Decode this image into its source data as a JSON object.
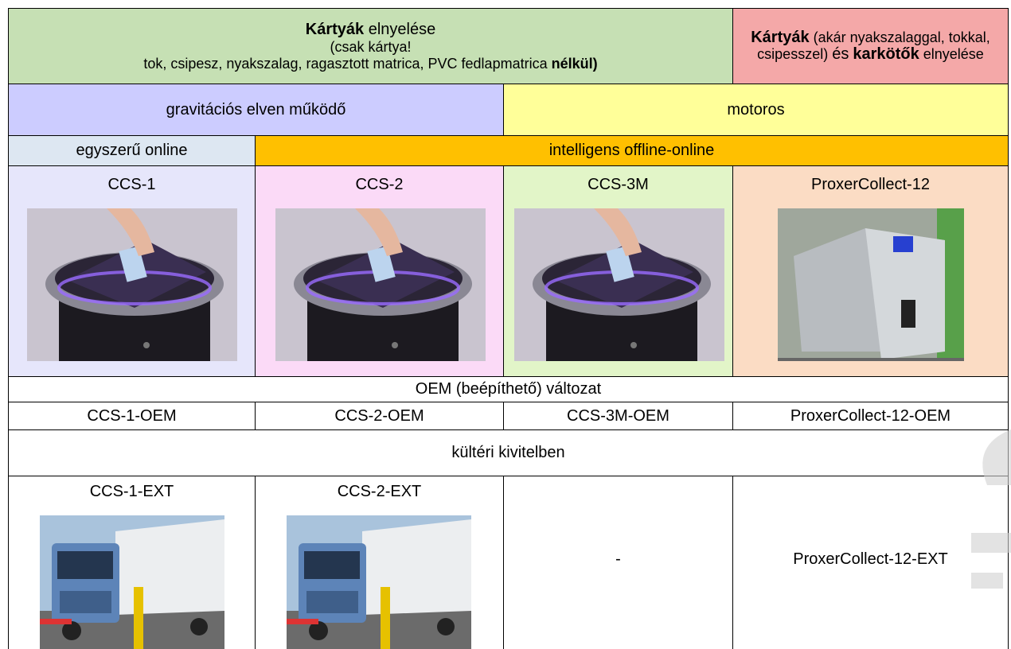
{
  "heading": {
    "cards_only": {
      "title_bold": "Kártyák",
      "title_rest": "elnyelése",
      "note1": "(csak kártya!",
      "note2": "tok, csipesz, nyakszalag, ragasztott matrica, PVC fedlapmatrica",
      "note2_bold": "nélkül)"
    },
    "cards_and_bands": {
      "bold1": "Kártyák",
      "rest1": "(akár nyakszalaggal, tokkal, csipesszel)",
      "and": "és",
      "bold2": "karkötők",
      "rest2": "elnyelése"
    }
  },
  "mechanism": [
    "gravitációs elven működő",
    "motoros"
  ],
  "mode": [
    "egyszerű online",
    "intelligens offline-online"
  ],
  "products": [
    "CCS-1",
    "CCS-2",
    "CCS-3M",
    "ProxerCollect-12"
  ],
  "oem_title": "OEM (beépíthető) változat",
  "oem": [
    "CCS-1-OEM",
    "CCS-2-OEM",
    "CCS-3M-OEM",
    "ProxerCollect-12-OEM"
  ],
  "outdoor_title": "kültéri kivitelben",
  "outdoor": [
    "CCS-1-EXT",
    "CCS-2-EXT",
    "-",
    "ProxerCollect-12-EXT"
  ]
}
